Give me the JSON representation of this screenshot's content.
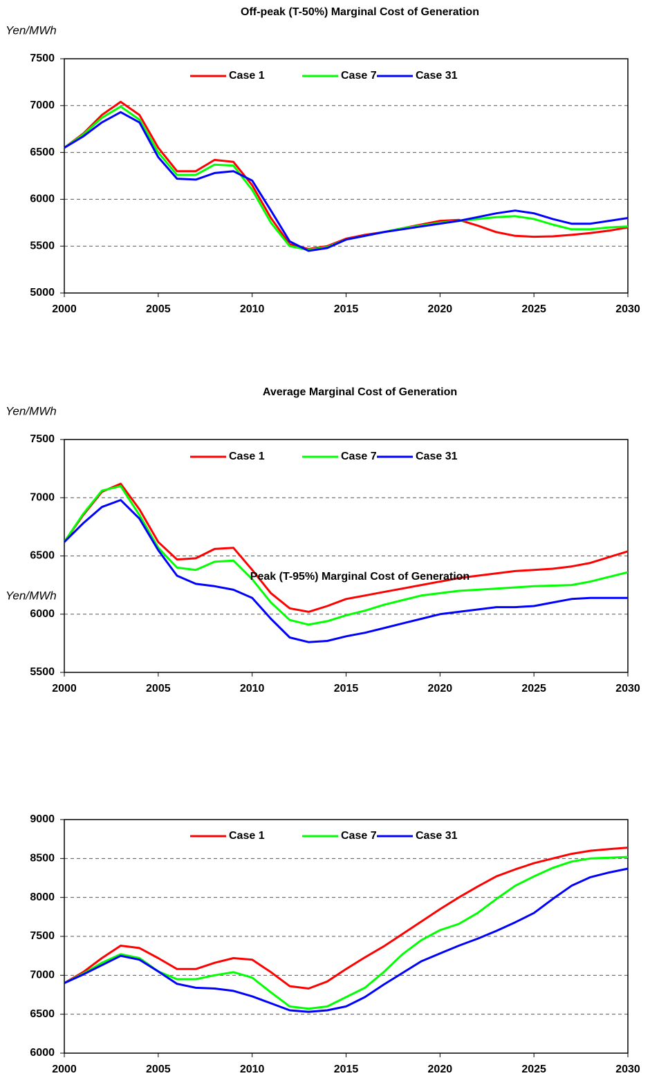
{
  "chart_data": [
    {
      "type": "line",
      "title": "Off-peak (T-50%) Marginal Cost of Generation",
      "y_label": "Yen/MWh",
      "x": [
        2000,
        2001,
        2002,
        2003,
        2004,
        2005,
        2006,
        2007,
        2008,
        2009,
        2010,
        2011,
        2012,
        2013,
        2014,
        2015,
        2016,
        2017,
        2018,
        2019,
        2020,
        2021,
        2022,
        2023,
        2024,
        2025,
        2026,
        2027,
        2028,
        2029,
        2030
      ],
      "xlim": [
        2000,
        2030
      ],
      "xticks": [
        2000,
        2005,
        2010,
        2015,
        2020,
        2025,
        2030
      ],
      "ylim": [
        5000,
        7500
      ],
      "yticks": [
        5000,
        5500,
        6000,
        6500,
        7000,
        7500
      ],
      "grid": true,
      "legend": "top",
      "series": [
        {
          "name": "Case 1",
          "color": "#ff0000",
          "values": [
            6550,
            6700,
            6900,
            7040,
            6900,
            6550,
            6300,
            6300,
            6420,
            6400,
            6150,
            5800,
            5520,
            5470,
            5500,
            5580,
            5620,
            5650,
            5690,
            5730,
            5770,
            5780,
            5720,
            5650,
            5610,
            5600,
            5605,
            5620,
            5640,
            5665,
            5700
          ]
        },
        {
          "name": "Case 7",
          "color": "#00ff00",
          "values": [
            6550,
            6690,
            6870,
            6990,
            6850,
            6500,
            6260,
            6260,
            6370,
            6360,
            6100,
            5750,
            5500,
            5460,
            5490,
            5570,
            5610,
            5650,
            5690,
            5720,
            5750,
            5770,
            5790,
            5810,
            5820,
            5790,
            5730,
            5680,
            5680,
            5700,
            5710
          ]
        },
        {
          "name": "Case 31",
          "color": "#0000ff",
          "values": [
            6550,
            6670,
            6820,
            6930,
            6820,
            6450,
            6220,
            6210,
            6280,
            6300,
            6200,
            5880,
            5550,
            5450,
            5480,
            5570,
            5610,
            5650,
            5680,
            5710,
            5740,
            5770,
            5810,
            5850,
            5880,
            5850,
            5790,
            5740,
            5740,
            5770,
            5800
          ]
        }
      ]
    },
    {
      "type": "line",
      "title": "Average Marginal Cost of Generation",
      "y_label": "Yen/MWh",
      "x": [
        2000,
        2001,
        2002,
        2003,
        2004,
        2005,
        2006,
        2007,
        2008,
        2009,
        2010,
        2011,
        2012,
        2013,
        2014,
        2015,
        2016,
        2017,
        2018,
        2019,
        2020,
        2021,
        2022,
        2023,
        2024,
        2025,
        2026,
        2027,
        2028,
        2029,
        2030
      ],
      "xlim": [
        2000,
        2030
      ],
      "xticks": [
        2000,
        2005,
        2010,
        2015,
        2020,
        2025,
        2030
      ],
      "ylim": [
        5500,
        7500
      ],
      "yticks": [
        5500,
        6000,
        6500,
        7000,
        7500
      ],
      "grid": true,
      "legend": "top",
      "series": [
        {
          "name": "Case 1",
          "color": "#ff0000",
          "values": [
            6620,
            6850,
            7050,
            7120,
            6900,
            6620,
            6470,
            6480,
            6560,
            6570,
            6380,
            6180,
            6050,
            6020,
            6070,
            6130,
            6160,
            6190,
            6220,
            6250,
            6280,
            6310,
            6330,
            6350,
            6370,
            6380,
            6390,
            6410,
            6440,
            6490,
            6540
          ]
        },
        {
          "name": "Case 7",
          "color": "#00ff00",
          "values": [
            6620,
            6860,
            7060,
            7100,
            6850,
            6570,
            6400,
            6380,
            6450,
            6460,
            6300,
            6100,
            5950,
            5910,
            5940,
            5990,
            6030,
            6080,
            6120,
            6160,
            6180,
            6200,
            6210,
            6220,
            6230,
            6240,
            6245,
            6250,
            6280,
            6320,
            6360
          ]
        },
        {
          "name": "Case 31",
          "color": "#0000ff",
          "values": [
            6620,
            6780,
            6920,
            6980,
            6820,
            6550,
            6330,
            6260,
            6240,
            6210,
            6140,
            5960,
            5800,
            5760,
            5770,
            5810,
            5840,
            5880,
            5920,
            5960,
            6000,
            6020,
            6040,
            6060,
            6060,
            6070,
            6100,
            6130,
            6140,
            6140,
            6140
          ]
        }
      ]
    },
    {
      "type": "line",
      "title": "Peak (T-95%) Marginal Cost of Generation",
      "y_label": "Yen/MWh",
      "x": [
        2000,
        2001,
        2002,
        2003,
        2004,
        2005,
        2006,
        2007,
        2008,
        2009,
        2010,
        2011,
        2012,
        2013,
        2014,
        2015,
        2016,
        2017,
        2018,
        2019,
        2020,
        2021,
        2022,
        2023,
        2024,
        2025,
        2026,
        2027,
        2028,
        2029,
        2030
      ],
      "xlim": [
        2000,
        2030
      ],
      "xticks": [
        2000,
        2005,
        2010,
        2015,
        2020,
        2025,
        2030
      ],
      "ylim": [
        6000,
        9000
      ],
      "yticks": [
        6000,
        6500,
        7000,
        7500,
        8000,
        8500,
        9000
      ],
      "grid": true,
      "legend": "top",
      "series": [
        {
          "name": "Case 1",
          "color": "#ff0000",
          "values": [
            6900,
            7040,
            7220,
            7380,
            7350,
            7220,
            7080,
            7080,
            7160,
            7220,
            7200,
            7040,
            6860,
            6830,
            6920,
            7080,
            7230,
            7370,
            7530,
            7690,
            7850,
            8000,
            8140,
            8270,
            8360,
            8440,
            8500,
            8560,
            8600,
            8620,
            8640
          ]
        },
        {
          "name": "Case 7",
          "color": "#00ff00",
          "values": [
            6900,
            7020,
            7160,
            7270,
            7220,
            7050,
            6950,
            6950,
            7000,
            7040,
            6970,
            6780,
            6600,
            6570,
            6600,
            6720,
            6840,
            7040,
            7270,
            7450,
            7580,
            7660,
            7800,
            7980,
            8150,
            8270,
            8380,
            8460,
            8500,
            8510,
            8520
          ]
        },
        {
          "name": "Case 31",
          "color": "#0000ff",
          "values": [
            6900,
            7010,
            7130,
            7250,
            7200,
            7050,
            6890,
            6840,
            6830,
            6800,
            6730,
            6640,
            6550,
            6530,
            6550,
            6600,
            6720,
            6880,
            7030,
            7180,
            7280,
            7380,
            7470,
            7570,
            7680,
            7800,
            7980,
            8150,
            8260,
            8320,
            8370
          ]
        }
      ]
    }
  ]
}
